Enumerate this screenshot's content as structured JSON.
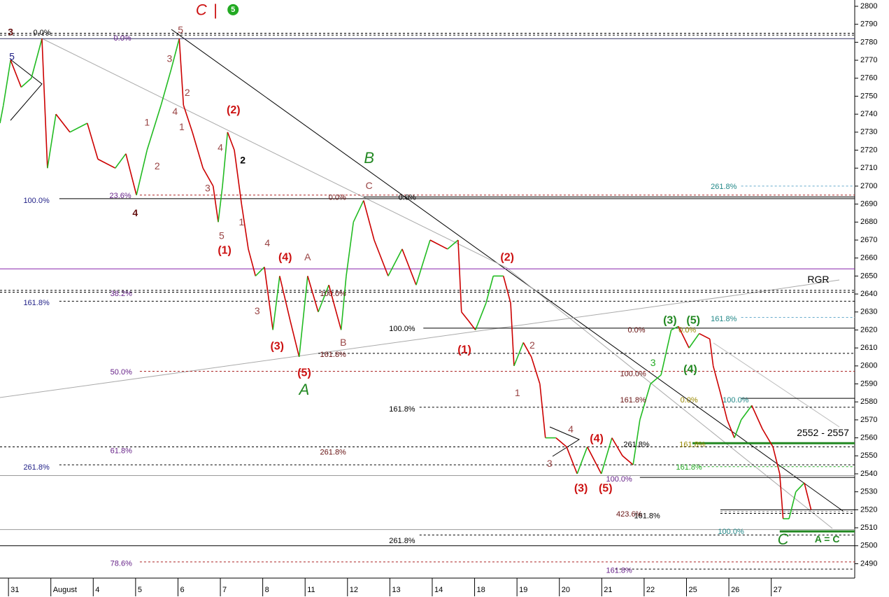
{
  "chart_data": {
    "type": "line",
    "xlim": [
      -0.2,
      19.97
    ],
    "ylim": [
      2482,
      2803.5
    ],
    "xticks": [
      {
        "value": 0,
        "label": "31"
      },
      {
        "value": 1,
        "label": "August"
      },
      {
        "value": 2,
        "label": "4"
      },
      {
        "value": 3,
        "label": "5"
      },
      {
        "value": 4,
        "label": "6"
      },
      {
        "value": 5,
        "label": "7"
      },
      {
        "value": 6,
        "label": "8"
      },
      {
        "value": 7,
        "label": "11"
      },
      {
        "value": 8,
        "label": "12"
      },
      {
        "value": 9,
        "label": "13"
      },
      {
        "value": 10,
        "label": "14"
      },
      {
        "value": 11,
        "label": "18"
      },
      {
        "value": 12,
        "label": "19"
      },
      {
        "value": 13,
        "label": "20"
      },
      {
        "value": 14,
        "label": "21"
      },
      {
        "value": 15,
        "label": "22"
      },
      {
        "value": 16,
        "label": "25"
      },
      {
        "value": 17,
        "label": "26"
      },
      {
        "value": 18,
        "label": "27"
      }
    ],
    "yticks": [
      2490,
      2500,
      2510,
      2520,
      2530,
      2540,
      2550,
      2560,
      2570,
      2580,
      2590,
      2600,
      2610,
      2620,
      2630,
      2640,
      2650,
      2660,
      2670,
      2680,
      2690,
      2700,
      2710,
      2720,
      2730,
      2740,
      2750,
      2760,
      2770,
      2780,
      2790,
      2800
    ],
    "up_color": "#22bb22",
    "down_color": "#cc0000",
    "x": [
      -0.2,
      -0.12,
      0.05,
      0.3,
      0.54,
      0.79,
      0.92,
      1.12,
      1.45,
      1.86,
      2.11,
      2.52,
      2.77,
      3.02,
      3.27,
      3.6,
      3.84,
      4.03,
      4.13,
      4.34,
      4.59,
      4.83,
      4.95,
      5.05,
      5.17,
      5.33,
      5.5,
      5.66,
      5.83,
      6.04,
      6.24,
      6.4,
      6.65,
      6.86,
      7.06,
      7.31,
      7.56,
      7.85,
      7.97,
      8.14,
      8.38,
      8.63,
      8.96,
      9.29,
      9.62,
      9.95,
      10.36,
      10.61,
      10.69,
      10.86,
      11.02,
      11.27,
      11.44,
      11.68,
      11.85,
      11.93,
      12.15,
      12.34,
      12.54,
      12.67,
      12.92,
      13.17,
      13.42,
      13.66,
      13.99,
      14.24,
      14.49,
      14.74,
      14.9,
      15.15,
      15.4,
      15.64,
      15.81,
      16.06,
      16.3,
      16.55,
      16.63,
      16.8,
      16.96,
      17.13,
      17.29,
      17.54,
      17.79,
      18.04,
      18.2,
      18.28,
      18.42,
      18.58,
      18.78,
      18.94
    ],
    "values": [
      2735,
      2745,
      2770,
      2755,
      2760,
      2782,
      2710,
      2740,
      2730,
      2735,
      2715,
      2710,
      2718,
      2695,
      2720,
      2745,
      2765,
      2782,
      2745,
      2730,
      2710,
      2700,
      2680,
      2700,
      2730,
      2720,
      2690,
      2665,
      2650,
      2655,
      2620,
      2650,
      2625,
      2605,
      2650,
      2630,
      2645,
      2620,
      2650,
      2680,
      2692,
      2670,
      2650,
      2665,
      2645,
      2670,
      2665,
      2670,
      2630,
      2625,
      2620,
      2635,
      2650,
      2650,
      2635,
      2600,
      2613,
      2605,
      2590,
      2560,
      2560,
      2555,
      2540,
      2555,
      2540,
      2560,
      2550,
      2545,
      2570,
      2590,
      2595,
      2620,
      2622,
      2610,
      2618,
      2615,
      2600,
      2585,
      2570,
      2560,
      2570,
      2578,
      2565,
      2555,
      2540,
      2515,
      2515,
      2530,
      2535,
      2520
    ],
    "levels": [
      {
        "value": 2785,
        "from": -0.2,
        "color": "#000000",
        "style": "dash"
      },
      {
        "value": 2784,
        "from": -0.2,
        "color": "#000000",
        "style": "dash"
      },
      {
        "value": 2782,
        "from": -0.2,
        "color": "#333366",
        "style": "solid"
      },
      {
        "value": 2700,
        "from": 17.29,
        "color": "#66aacc",
        "style": "dash"
      },
      {
        "value": 2695,
        "from": 3.1,
        "color": "#aa2222",
        "style": "dash"
      },
      {
        "value": 2694,
        "from": 8.38,
        "color": "#000000",
        "style": "solid"
      },
      {
        "value": 2693,
        "from": 1.2,
        "color": "#000000",
        "style": "solid"
      },
      {
        "value": 2654,
        "from": -0.2,
        "color": "#8822aa",
        "style": "solid"
      },
      {
        "value": 2642,
        "from": -0.2,
        "color": "#000000",
        "style": "dash"
      },
      {
        "value": 2641,
        "from": -0.2,
        "color": "#000000",
        "style": "dash"
      },
      {
        "value": 2636,
        "from": 1.2,
        "color": "#000000",
        "style": "dash"
      },
      {
        "value": 2627,
        "from": 17.29,
        "color": "#66aacc",
        "style": "dash"
      },
      {
        "value": 2621,
        "from": 9.79,
        "color": "#000000",
        "style": "solid"
      },
      {
        "value": 2607,
        "from": 7.31,
        "color": "#000000",
        "style": "dash"
      },
      {
        "value": 2597,
        "from": 3.1,
        "color": "#aa2222",
        "style": "dash"
      },
      {
        "value": 2582,
        "from": 17.29,
        "color": "#000000",
        "style": "solid"
      },
      {
        "value": 2577,
        "from": 9.7,
        "color": "#000000",
        "style": "dash"
      },
      {
        "value": 2557,
        "from": 16.14,
        "color": "#228822",
        "style": "thick"
      },
      {
        "value": 2555,
        "from": -0.2,
        "color": "#000000",
        "style": "dash"
      },
      {
        "value": 2545,
        "from": 1.2,
        "color": "#000000",
        "style": "dash"
      },
      {
        "value": 2544,
        "from": 16.3,
        "color": "#22aa22",
        "style": "dash"
      },
      {
        "value": 2539,
        "from": -0.2,
        "color": "#999999",
        "style": "solid"
      },
      {
        "value": 2538,
        "from": 14.9,
        "color": "#000000",
        "style": "solid"
      },
      {
        "value": 2520,
        "from": 16.8,
        "color": "#000000",
        "style": "solid"
      },
      {
        "value": 2519,
        "from": 16.8,
        "color": "#888888",
        "style": "dash"
      },
      {
        "value": 2518,
        "from": 16.8,
        "color": "#000000",
        "style": "dash"
      },
      {
        "value": 2509,
        "from": -0.2,
        "color": "#999999",
        "style": "solid"
      },
      {
        "value": 2508,
        "from": 18.2,
        "color": "#228822",
        "style": "thick"
      },
      {
        "value": 2506,
        "from": 9.7,
        "color": "#000000",
        "style": "dash"
      },
      {
        "value": 2500,
        "from": -0.2,
        "color": "#000000",
        "style": "solid"
      },
      {
        "value": 2491,
        "from": 3.1,
        "color": "#aa2222",
        "style": "dash"
      },
      {
        "value": 2487,
        "from": 14.32,
        "color": "#000000",
        "style": "dash"
      }
    ],
    "annotations": [
      {
        "text": "3",
        "x": 0.05,
        "y": 2785.2,
        "color": "#661111",
        "style": "strong"
      },
      {
        "text": "0.0%",
        "x": 0.79,
        "y": 2785.2,
        "color": "#000000",
        "style": "fib"
      },
      {
        "text": "0.0%",
        "x": 2.69,
        "y": 2782.1,
        "color": "#662288",
        "style": "fib"
      },
      {
        "text": "C",
        "x": 4.55,
        "y": 2797.3,
        "color": "#cc1111",
        "style": "big"
      },
      {
        "text": "|",
        "x": 4.88,
        "y": 2797.3,
        "color": "#cc1111",
        "style": "big"
      },
      {
        "text": "5",
        "x": 5.3,
        "y": 2798.1,
        "color": "#22aa22",
        "style": "circle"
      },
      {
        "text": "5",
        "x": 4.06,
        "y": 2786.4,
        "color": "#994444",
        "style": "wave"
      },
      {
        "text": "5",
        "x": 0.08,
        "y": 2771.6,
        "color": "#222288",
        "style": "wave"
      },
      {
        "text": "3",
        "x": 3.8,
        "y": 2770.4,
        "color": "#994444",
        "style": "wave"
      },
      {
        "text": "2",
        "x": 4.22,
        "y": 2751.7,
        "color": "#994444",
        "style": "wave"
      },
      {
        "text": "4",
        "x": 3.93,
        "y": 2741.2,
        "color": "#994444",
        "style": "wave"
      },
      {
        "text": "1",
        "x": 4.09,
        "y": 2732.6,
        "color": "#994444",
        "style": "wave"
      },
      {
        "text": "1",
        "x": 3.27,
        "y": 2735.0,
        "color": "#994444",
        "style": "wave"
      },
      {
        "text": "2",
        "x": 3.51,
        "y": 2710.8,
        "color": "#994444",
        "style": "wave"
      },
      {
        "text": "4",
        "x": 5.0,
        "y": 2721.0,
        "color": "#994444",
        "style": "wave"
      },
      {
        "text": "2",
        "x": 5.53,
        "y": 2714.0,
        "color": "#000000",
        "style": "strong"
      },
      {
        "text": "3",
        "x": 4.7,
        "y": 2698.4,
        "color": "#994444",
        "style": "wave"
      },
      {
        "text": "5",
        "x": 5.03,
        "y": 2672.0,
        "color": "#994444",
        "style": "wave"
      },
      {
        "text": "1",
        "x": 5.5,
        "y": 2679.7,
        "color": "#994444",
        "style": "wave"
      },
      {
        "text": "4",
        "x": 6.11,
        "y": 2668.0,
        "color": "#994444",
        "style": "wave"
      },
      {
        "text": "3",
        "x": 5.87,
        "y": 2630.2,
        "color": "#994444",
        "style": "wave"
      },
      {
        "text": "(2)",
        "x": 5.31,
        "y": 2742.0,
        "color": "#cc1111",
        "style": "major"
      },
      {
        "text": "(1)",
        "x": 5.1,
        "y": 2664.1,
        "color": "#cc1111",
        "style": "major"
      },
      {
        "text": "(4)",
        "x": 6.53,
        "y": 2660.2,
        "color": "#cc1111",
        "style": "major"
      },
      {
        "text": "(3)",
        "x": 6.34,
        "y": 2610.7,
        "color": "#cc1111",
        "style": "major"
      },
      {
        "text": "(5)",
        "x": 6.98,
        "y": 2595.9,
        "color": "#cc1111",
        "style": "major"
      },
      {
        "text": "A",
        "x": 6.98,
        "y": 2586.2,
        "color": "#228822",
        "style": "big"
      },
      {
        "text": "A",
        "x": 7.06,
        "y": 2660.2,
        "color": "#994444",
        "style": "wave"
      },
      {
        "text": "B",
        "x": 7.9,
        "y": 2612.7,
        "color": "#994444",
        "style": "wave"
      },
      {
        "text": "B",
        "x": 8.51,
        "y": 2715.1,
        "color": "#228822",
        "style": "big"
      },
      {
        "text": "C",
        "x": 8.51,
        "y": 2699.9,
        "color": "#994444",
        "style": "wave"
      },
      {
        "text": "4",
        "x": 2.99,
        "y": 2684.7,
        "color": "#661111",
        "style": "strong"
      },
      {
        "text": "100.0%",
        "x": 0.66,
        "y": 2691.7,
        "color": "#222288",
        "style": "fib"
      },
      {
        "text": "23.6%",
        "x": 2.64,
        "y": 2694.5,
        "color": "#662288",
        "style": "fib"
      },
      {
        "text": "0.0%",
        "x": 7.76,
        "y": 2693.6,
        "color": "#661111",
        "style": "fib"
      },
      {
        "text": "0.0%",
        "x": 9.41,
        "y": 2693.6,
        "color": "#000000",
        "style": "fib"
      },
      {
        "text": "38.2%",
        "x": 2.66,
        "y": 2640.0,
        "color": "#662288",
        "style": "fib"
      },
      {
        "text": "161.8%",
        "x": 0.66,
        "y": 2634.9,
        "color": "#222288",
        "style": "fib"
      },
      {
        "text": "100.0%",
        "x": 7.66,
        "y": 2640.0,
        "color": "#661111",
        "style": "fib"
      },
      {
        "text": "161.8%",
        "x": 7.66,
        "y": 2606.1,
        "color": "#661111",
        "style": "fib"
      },
      {
        "text": "50.0%",
        "x": 2.66,
        "y": 2596.3,
        "color": "#662288",
        "style": "fib"
      },
      {
        "text": "100.0%",
        "x": 9.29,
        "y": 2620.5,
        "color": "#000000",
        "style": "fib"
      },
      {
        "text": "(1)",
        "x": 10.76,
        "y": 2608.8,
        "color": "#cc1111",
        "style": "major"
      },
      {
        "text": "(2)",
        "x": 11.77,
        "y": 2660.2,
        "color": "#cc1111",
        "style": "major"
      },
      {
        "text": "2",
        "x": 12.36,
        "y": 2611.1,
        "color": "#994444",
        "style": "wave"
      },
      {
        "text": "1",
        "x": 12.01,
        "y": 2584.7,
        "color": "#994444",
        "style": "wave"
      },
      {
        "text": "4",
        "x": 13.27,
        "y": 2564.4,
        "color": "#994444",
        "style": "wave"
      },
      {
        "text": "3",
        "x": 12.77,
        "y": 2545.3,
        "color": "#994444",
        "style": "wave"
      },
      {
        "text": "(4)",
        "x": 13.88,
        "y": 2559.3,
        "color": "#cc1111",
        "style": "major"
      },
      {
        "text": "(3)",
        "x": 13.51,
        "y": 2531.7,
        "color": "#cc1111",
        "style": "major"
      },
      {
        "text": "(5)",
        "x": 14.09,
        "y": 2531.7,
        "color": "#cc1111",
        "style": "major"
      },
      {
        "text": "61.8%",
        "x": 2.66,
        "y": 2552.7,
        "color": "#662288",
        "style": "fib"
      },
      {
        "text": "261.8%",
        "x": 7.66,
        "y": 2551.9,
        "color": "#661111",
        "style": "fib"
      },
      {
        "text": "261.8%",
        "x": 0.66,
        "y": 2543.4,
        "color": "#222288",
        "style": "fib"
      },
      {
        "text": "161.8%",
        "x": 9.29,
        "y": 2575.7,
        "color": "#000000",
        "style": "fib"
      },
      {
        "text": "261.8%",
        "x": 9.29,
        "y": 2502.5,
        "color": "#000000",
        "style": "fib"
      },
      {
        "text": "78.6%",
        "x": 2.66,
        "y": 2490.0,
        "color": "#662288",
        "style": "fib"
      },
      {
        "text": "161.8%",
        "x": 14.41,
        "y": 2486.1,
        "color": "#662288",
        "style": "fib"
      },
      {
        "text": "100.0%",
        "x": 14.41,
        "y": 2536.8,
        "color": "#662288",
        "style": "fib"
      },
      {
        "text": "(3)",
        "x": 15.61,
        "y": 2625.2,
        "color": "#228822",
        "style": "major"
      },
      {
        "text": "(5)",
        "x": 16.16,
        "y": 2625.2,
        "color": "#228822",
        "style": "major"
      },
      {
        "text": "(4)",
        "x": 16.09,
        "y": 2597.9,
        "color": "#228822",
        "style": "major"
      },
      {
        "text": "3",
        "x": 15.21,
        "y": 2601.4,
        "color": "#22aa22",
        "style": "wave"
      },
      {
        "text": "100.0%",
        "x": 14.74,
        "y": 2595.5,
        "color": "#661111",
        "style": "fib"
      },
      {
        "text": "161.8%",
        "x": 14.74,
        "y": 2580.8,
        "color": "#661111",
        "style": "fib"
      },
      {
        "text": "0.0%",
        "x": 14.82,
        "y": 2619.7,
        "color": "#661111",
        "style": "fib"
      },
      {
        "text": "0.0%",
        "x": 16.02,
        "y": 2619.7,
        "color": "#998800",
        "style": "fib"
      },
      {
        "text": "161.8%",
        "x": 16.88,
        "y": 2626.0,
        "color": "#228888",
        "style": "fib"
      },
      {
        "text": "261.8%",
        "x": 16.88,
        "y": 2699.5,
        "color": "#228888",
        "style": "fib"
      },
      {
        "text": "RGR",
        "x": 19.11,
        "y": 2647.7,
        "color": "#000000",
        "style": "note"
      },
      {
        "text": "2552 - 2557",
        "x": 19.22,
        "y": 2562.5,
        "color": "#000000",
        "style": "note"
      },
      {
        "text": "C",
        "x": 18.28,
        "y": 2502.9,
        "color": "#228822",
        "style": "big"
      },
      {
        "text": "A = C",
        "x": 19.32,
        "y": 2503.3,
        "color": "#228822",
        "style": "strong"
      },
      {
        "text": "100.0%",
        "x": 17.16,
        "y": 2580.8,
        "color": "#228888",
        "style": "fib"
      },
      {
        "text": "0.0%",
        "x": 16.06,
        "y": 2580.8,
        "color": "#998800",
        "style": "fib"
      },
      {
        "text": "100.0%",
        "x": 17.05,
        "y": 2507.6,
        "color": "#228888",
        "style": "fib"
      },
      {
        "text": "161.8%",
        "x": 16.06,
        "y": 2543.4,
        "color": "#22aa22",
        "style": "fib"
      },
      {
        "text": "261.8%",
        "x": 14.82,
        "y": 2556.2,
        "color": "#000000",
        "style": "fib"
      },
      {
        "text": "161.8%",
        "x": 16.14,
        "y": 2556.2,
        "color": "#998800",
        "style": "fib"
      },
      {
        "text": "423.6%",
        "x": 14.65,
        "y": 2517.3,
        "color": "#661111",
        "style": "fib"
      },
      {
        "text": "161.8%",
        "x": 15.07,
        "y": 2516.5,
        "color": "#000000",
        "style": "fib"
      }
    ]
  }
}
